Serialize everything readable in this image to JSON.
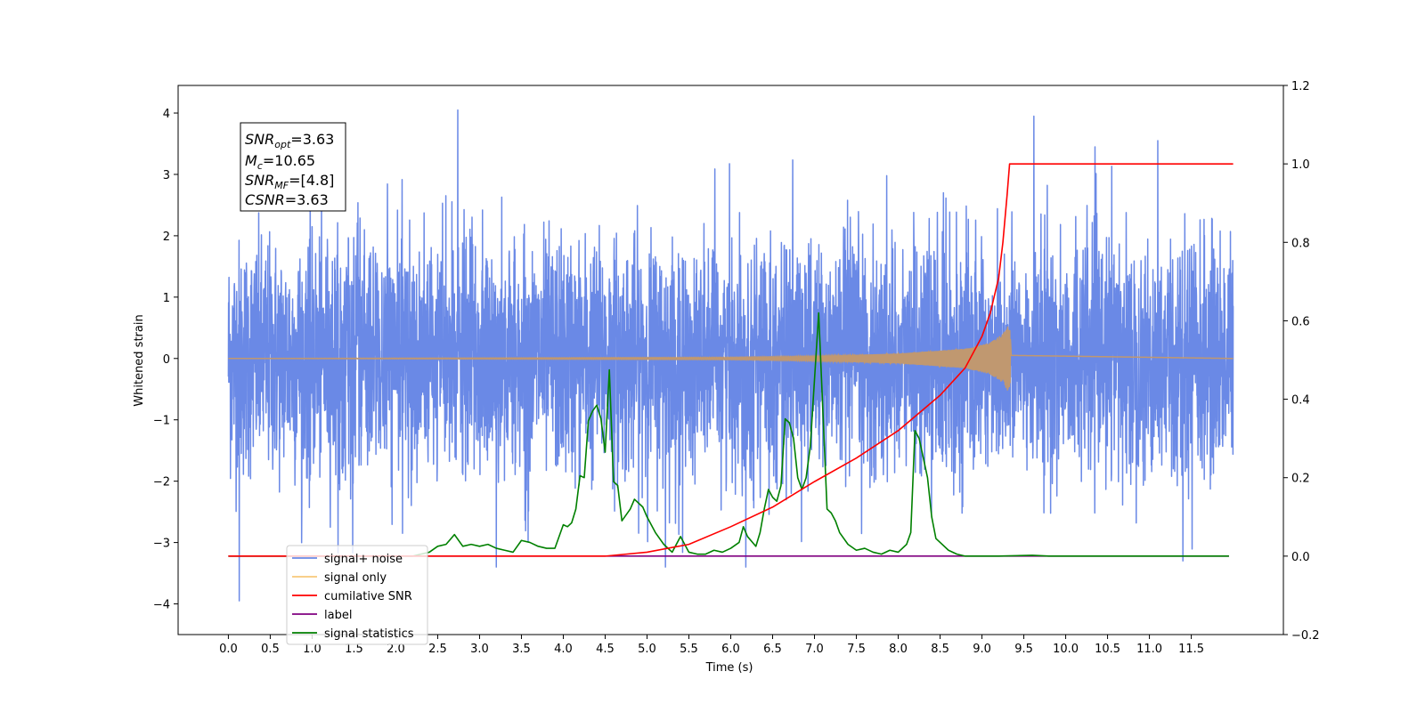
{
  "chart_data": {
    "type": "line",
    "xlabel": "Time (s)",
    "ylabel": "Whitened strain",
    "xlim": [
      -0.6,
      12.6
    ],
    "ylim": [
      -4.5,
      4.45
    ],
    "ylim_right": [
      -0.2,
      1.2
    ],
    "x_ticks": [
      "0.0",
      "0.5",
      "1.0",
      "1.5",
      "2.0",
      "2.5",
      "3.0",
      "3.5",
      "4.0",
      "4.5",
      "5.0",
      "5.5",
      "6.0",
      "6.5",
      "7.0",
      "7.5",
      "8.0",
      "8.5",
      "9.0",
      "9.5",
      "10.0",
      "10.5",
      "11.0",
      "11.5"
    ],
    "y_ticks_left": [
      "4",
      "3",
      "2",
      "1",
      "0",
      "−1",
      "−2",
      "−3",
      "−4"
    ],
    "y_ticks_right": [
      "1.2",
      "1.0",
      "0.8",
      "0.6",
      "0.4",
      "0.2",
      "0.0",
      "−0.2"
    ],
    "legend_placement": "lower-left",
    "grid": false,
    "annotation": {
      "snr_opt_label": "SNR",
      "snr_opt_sub": "opt",
      "snr_opt_value": "=3.63",
      "mc_label": "M",
      "mc_sub": "c",
      "mc_value": "=10.65",
      "snr_mf_label": "SNR",
      "snr_mf_sub": "MF",
      "snr_mf_value": "=[4.8]",
      "csnr_label": "CSNR",
      "csnr_value": "=3.63"
    },
    "series": [
      {
        "name": "signal+ noise",
        "axis": "left",
        "color": "#6a89e6",
        "x_range": [
          0.0,
          12.0
        ],
        "std": 0.95,
        "notable_peaks": [
          [
            2.74,
            4.05
          ],
          [
            0.13,
            -3.95
          ],
          [
            9.62,
            3.95
          ],
          [
            11.1,
            3.55
          ],
          [
            10.35,
            3.45
          ],
          [
            5.22,
            -3.4
          ],
          [
            6.18,
            -3.4
          ],
          [
            3.2,
            -3.4
          ],
          [
            11.4,
            -3.3
          ]
        ]
      },
      {
        "name": "signal only",
        "axis": "left",
        "color": "#f5b041",
        "render_color": "#c09870",
        "envelope": [
          [
            0.0,
            0.0
          ],
          [
            6.0,
            0.02
          ],
          [
            7.0,
            0.04
          ],
          [
            8.0,
            0.08
          ],
          [
            8.8,
            0.16
          ],
          [
            9.1,
            0.26
          ],
          [
            9.25,
            0.4
          ],
          [
            9.33,
            0.58
          ],
          [
            9.35,
            0.05
          ],
          [
            12.0,
            0.0
          ]
        ]
      },
      {
        "name": "cumilative SNR",
        "axis": "right",
        "color": "#ff0000",
        "x": [
          0.0,
          4.5,
          5.0,
          5.5,
          6.0,
          6.5,
          7.0,
          7.5,
          8.0,
          8.5,
          8.8,
          9.0,
          9.1,
          9.2,
          9.25,
          9.3,
          9.33,
          9.34,
          12.0
        ],
        "values": [
          0.0,
          0.0,
          0.01,
          0.03,
          0.075,
          0.125,
          0.19,
          0.25,
          0.32,
          0.41,
          0.48,
          0.56,
          0.62,
          0.71,
          0.8,
          0.92,
          1.0,
          1.0,
          1.0
        ]
      },
      {
        "name": "label",
        "axis": "right",
        "color": "#800080",
        "x": [
          0.0,
          11.95
        ],
        "values": [
          0.0,
          0.0
        ]
      },
      {
        "name": "signal statistics",
        "axis": "right",
        "color": "#008000",
        "x": [
          0.0,
          2.2,
          2.3,
          2.4,
          2.5,
          2.6,
          2.7,
          2.8,
          2.9,
          3.0,
          3.1,
          3.2,
          3.3,
          3.4,
          3.5,
          3.6,
          3.7,
          3.8,
          3.9,
          4.0,
          4.05,
          4.1,
          4.15,
          4.2,
          4.25,
          4.3,
          4.35,
          4.4,
          4.45,
          4.5,
          4.55,
          4.6,
          4.65,
          4.7,
          4.75,
          4.8,
          4.85,
          4.9,
          4.95,
          5.0,
          5.1,
          5.2,
          5.3,
          5.4,
          5.5,
          5.6,
          5.7,
          5.8,
          5.9,
          6.0,
          6.1,
          6.15,
          6.2,
          6.3,
          6.35,
          6.4,
          6.45,
          6.5,
          6.55,
          6.6,
          6.65,
          6.7,
          6.75,
          6.8,
          6.85,
          6.9,
          6.95,
          7.0,
          7.05,
          7.1,
          7.15,
          7.2,
          7.25,
          7.3,
          7.4,
          7.5,
          7.6,
          7.7,
          7.8,
          7.9,
          8.0,
          8.1,
          8.15,
          8.2,
          8.25,
          8.3,
          8.35,
          8.4,
          8.45,
          8.5,
          8.6,
          8.7,
          8.8,
          8.9,
          9.0,
          9.2,
          9.6,
          9.8,
          11.95
        ],
        "values": [
          0.0,
          0.0,
          0.005,
          0.01,
          0.025,
          0.03,
          0.055,
          0.025,
          0.03,
          0.025,
          0.03,
          0.02,
          0.015,
          0.01,
          0.04,
          0.035,
          0.025,
          0.02,
          0.02,
          0.08,
          0.075,
          0.085,
          0.12,
          0.205,
          0.2,
          0.345,
          0.37,
          0.385,
          0.35,
          0.265,
          0.475,
          0.19,
          0.18,
          0.09,
          0.105,
          0.12,
          0.145,
          0.135,
          0.125,
          0.1,
          0.06,
          0.03,
          0.01,
          0.05,
          0.01,
          0.005,
          0.005,
          0.015,
          0.01,
          0.02,
          0.035,
          0.075,
          0.05,
          0.025,
          0.06,
          0.12,
          0.17,
          0.15,
          0.14,
          0.18,
          0.35,
          0.34,
          0.3,
          0.2,
          0.17,
          0.2,
          0.28,
          0.45,
          0.62,
          0.37,
          0.12,
          0.11,
          0.09,
          0.06,
          0.03,
          0.015,
          0.02,
          0.01,
          0.005,
          0.015,
          0.01,
          0.03,
          0.06,
          0.32,
          0.3,
          0.25,
          0.2,
          0.1,
          0.045,
          0.035,
          0.015,
          0.005,
          0.0,
          0.0,
          0.0,
          0.0,
          0.002,
          0.0,
          0.0
        ]
      }
    ],
    "legend": [
      "signal+ noise",
      "signal only",
      "cumilative SNR",
      "label",
      "signal statistics"
    ]
  }
}
